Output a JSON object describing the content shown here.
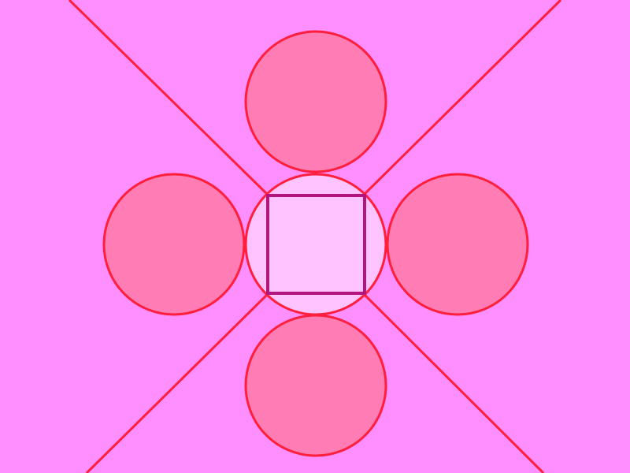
{
  "colors": {
    "background": "#FF8FFF",
    "line": "#FF1E3C",
    "outer_circle_fill": "#FF7DB4",
    "outer_circle_stroke": "#FF1E3C",
    "center_circle_fill": "#FFC3FF",
    "center_circle_stroke": "#FF1E3C",
    "square_fill": "#FFC3FF",
    "square_stroke": "#B4147D"
  }
}
